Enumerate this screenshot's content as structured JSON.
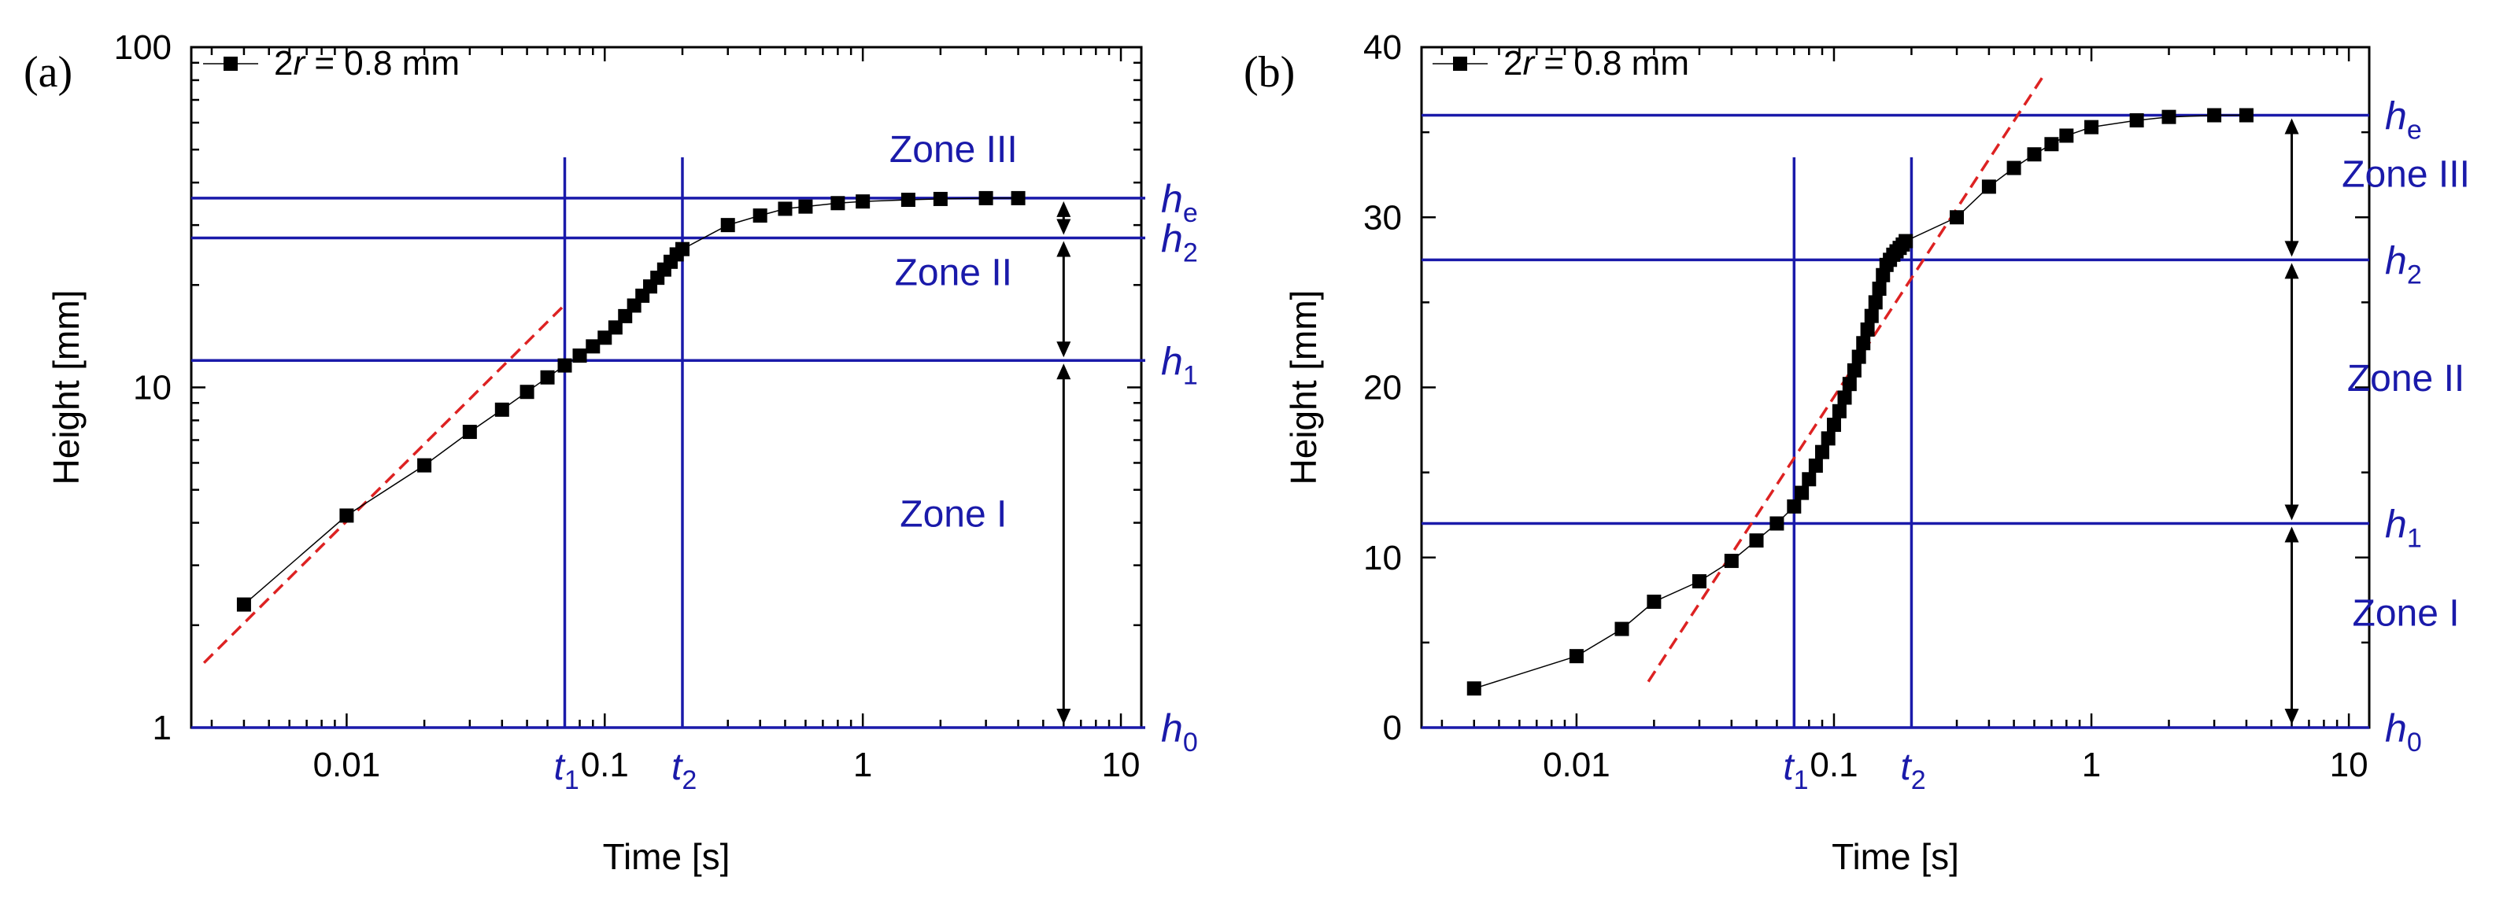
{
  "chart_data": [
    {
      "panel_label": "(a)",
      "type": "scatter",
      "xscale": "log",
      "yscale": "log",
      "xlim": [
        0.0025,
        12
      ],
      "ylim": [
        1,
        100
      ],
      "xlabel": "Time [s]",
      "ylabel": "Height [mm]",
      "x_ticks": [
        "0.01",
        "0.1",
        "1",
        "10"
      ],
      "y_ticks": [
        "1",
        "10",
        "100"
      ],
      "legend": {
        "prefix": "2",
        "italic": "r",
        "suffix": " = 0.8 mm",
        "position": "top-left"
      },
      "series": [
        {
          "name": "2r = 0.8 mm",
          "x": [
            0.004,
            0.01,
            0.02,
            0.03,
            0.04,
            0.05,
            0.06,
            0.07,
            0.08,
            0.09,
            0.1,
            0.11,
            0.12,
            0.13,
            0.14,
            0.15,
            0.16,
            0.17,
            0.18,
            0.19,
            0.2,
            0.3,
            0.4,
            0.5,
            0.6,
            0.8,
            1,
            1.5,
            2,
            3,
            4
          ],
          "y": [
            2.3,
            4.2,
            5.9,
            7.4,
            8.6,
            9.7,
            10.7,
            11.6,
            12.4,
            13.2,
            14.0,
            15.0,
            16.2,
            17.4,
            18.6,
            19.8,
            21.0,
            22.2,
            23.4,
            24.6,
            25.5,
            30.0,
            32.0,
            33.5,
            34.0,
            34.8,
            35.2,
            35.6,
            35.8,
            36.0,
            36.0
          ]
        }
      ],
      "fit_line": {
        "color": "#dd2222",
        "x": [
          0.0028,
          0.07
        ],
        "y": [
          1.55,
          17.5
        ]
      },
      "h_levels": [
        {
          "name": "he",
          "value": 36,
          "label": "h",
          "sub": "e"
        },
        {
          "name": "h2",
          "value": 27.5,
          "label": "h",
          "sub": "2"
        },
        {
          "name": "h1",
          "value": 12,
          "label": "h",
          "sub": "1"
        },
        {
          "name": "h0",
          "value": 1,
          "label": "h",
          "sub": "0"
        }
      ],
      "t_lines": [
        {
          "name": "t1",
          "value": 0.07,
          "label": "t",
          "sub": "1"
        },
        {
          "name": "t2",
          "value": 0.2,
          "label": "t",
          "sub": "2"
        }
      ],
      "zones": [
        {
          "name": "zone-3",
          "text": "Zone III",
          "y": 46
        },
        {
          "name": "zone-2",
          "text": "Zone II",
          "y": 20
        },
        {
          "name": "zone-1",
          "text": "Zone I",
          "y": 3.9
        }
      ],
      "arrow_x": 6,
      "line_color": "#1a1aaa"
    },
    {
      "panel_label": "(b)",
      "type": "scatter",
      "xscale": "log",
      "yscale": "linear",
      "xlim": [
        0.0025,
        12
      ],
      "ylim": [
        0,
        40
      ],
      "xlabel": "Time [s]",
      "ylabel": "Height [mm]",
      "x_ticks": [
        "0.01",
        "0.1",
        "1",
        "10"
      ],
      "y_ticks": [
        "0",
        "10",
        "20",
        "30",
        "40"
      ],
      "legend": {
        "prefix": "2",
        "italic": "r",
        "suffix": " = 0.8 mm",
        "position": "top-left"
      },
      "series": [
        {
          "name": "2r = 0.8 mm",
          "x": [
            0.004,
            0.01,
            0.015,
            0.02,
            0.03,
            0.04,
            0.05,
            0.06,
            0.07,
            0.075,
            0.08,
            0.085,
            0.09,
            0.095,
            0.1,
            0.105,
            0.11,
            0.115,
            0.12,
            0.125,
            0.13,
            0.135,
            0.14,
            0.145,
            0.15,
            0.155,
            0.16,
            0.165,
            0.17,
            0.175,
            0.18,
            0.185,
            0.19,
            0.3,
            0.4,
            0.5,
            0.6,
            0.7,
            0.8,
            1,
            1.5,
            2,
            3,
            4
          ],
          "y": [
            2.3,
            4.2,
            5.8,
            7.4,
            8.6,
            9.8,
            11.0,
            12.0,
            13.0,
            13.8,
            14.6,
            15.4,
            16.2,
            17.0,
            17.8,
            18.6,
            19.4,
            20.2,
            21.0,
            21.8,
            22.6,
            23.4,
            24.2,
            25.0,
            25.8,
            26.6,
            27.2,
            27.5,
            27.8,
            28.0,
            28.2,
            28.4,
            28.6,
            30.0,
            31.8,
            32.9,
            33.7,
            34.3,
            34.8,
            35.3,
            35.7,
            35.9,
            36.0,
            36.0
          ]
        }
      ],
      "fit_line": {
        "color": "#dd2222",
        "x": [
          0.019,
          0.65
        ],
        "y": [
          2.7,
          38.3
        ]
      },
      "h_levels": [
        {
          "name": "he",
          "value": 36,
          "label": "h",
          "sub": "e"
        },
        {
          "name": "h2",
          "value": 27.5,
          "label": "h",
          "sub": "2"
        },
        {
          "name": "h1",
          "value": 12,
          "label": "h",
          "sub": "1"
        },
        {
          "name": "h0",
          "value": 0,
          "label": "h",
          "sub": "0"
        }
      ],
      "t_lines": [
        {
          "name": "t1",
          "value": 0.07,
          "label": "t",
          "sub": "1"
        },
        {
          "name": "t2",
          "value": 0.2,
          "label": "t",
          "sub": "2"
        }
      ],
      "zones": [
        {
          "name": "zone-3",
          "text": "Zone III",
          "y": 31.8
        },
        {
          "name": "zone-2",
          "text": "Zone II",
          "y": 19.8
        },
        {
          "name": "zone-1",
          "text": "Zone I",
          "y": 6.0
        }
      ],
      "arrow_x": 6,
      "line_color": "#1a1aaa"
    }
  ]
}
